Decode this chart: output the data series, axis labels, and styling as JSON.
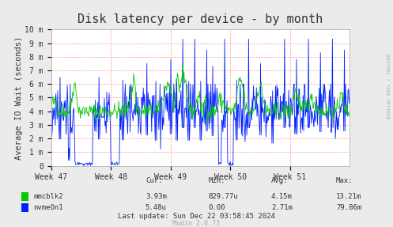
{
  "title": "Disk latency per device - by month",
  "ylabel": "Average IO Wait (seconds)",
  "background_color": "#ebebeb",
  "plot_bg_color": "#ffffff",
  "grid_color": "#ff9999",
  "x_tick_labels": [
    "Week 47",
    "Week 48",
    "Week 49",
    "Week 50",
    "Week 51"
  ],
  "y_tick_labels": [
    "0",
    "1 m",
    "2 m",
    "3 m",
    "4 m",
    "5 m",
    "6 m",
    "7 m",
    "8 m",
    "9 m",
    "10 m"
  ],
  "ylim": [
    0,
    0.01
  ],
  "legend": [
    {
      "label": "mmcblk2",
      "color": "#00cc00"
    },
    {
      "label": "nvme0n1",
      "color": "#0022ff"
    }
  ],
  "footer_text": "Last update: Sun Dec 22 03:58:45 2024",
  "munin_text": "Munin 2.0.73",
  "stats_headers": [
    "Cur:",
    "Min:",
    "Avg:",
    "Max:"
  ],
  "stats_mmcblk2": [
    "3.93m",
    "829.77u",
    "4.15m",
    "13.21m"
  ],
  "stats_nvme0n1": [
    "5.48u",
    "0.00",
    "2.71m",
    "79.86m"
  ],
  "title_fontsize": 11,
  "label_fontsize": 7.5,
  "tick_fontsize": 7,
  "right_label": "RRDTOOL / TOBI OETIKER",
  "title_color": "#333333",
  "text_color": "#333333"
}
